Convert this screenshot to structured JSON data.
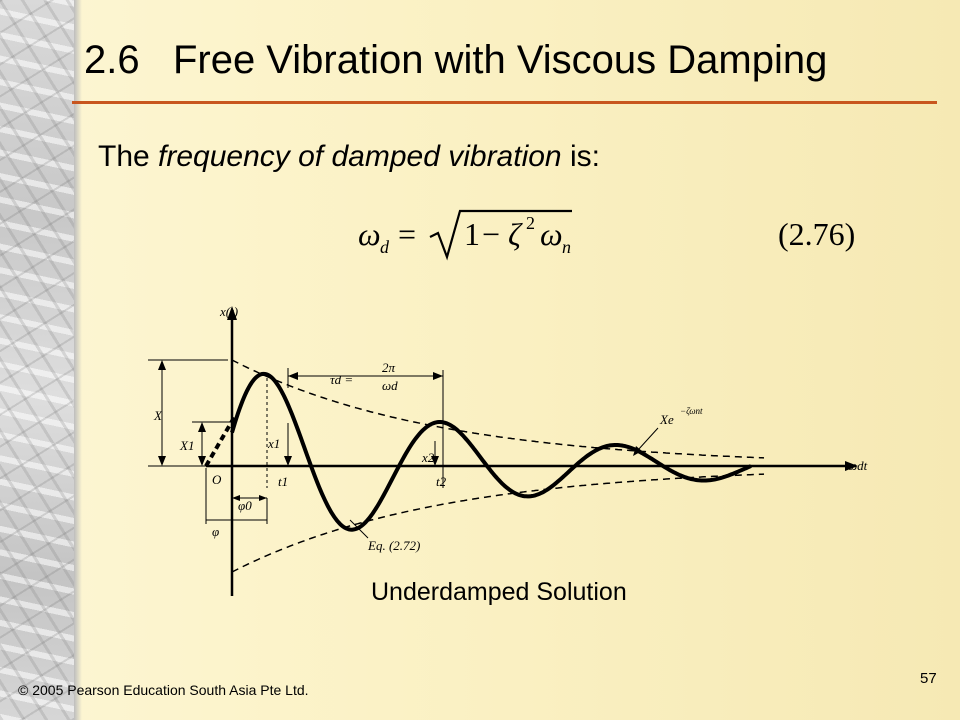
{
  "slide": {
    "title": "2.6   Free Vibration with Viscous Damping",
    "intro_prefix": "The ",
    "intro_emphasis": "frequency of damped vibration",
    "intro_suffix": " is:",
    "equation_number": "(2.76)",
    "caption": "Underdamped Solution",
    "copyright": "© 2005 Pearson Education South Asia Pte Ltd.",
    "page_number": "57",
    "accent_color": "#c8561e"
  },
  "figure": {
    "axis_y_label": "x(t)",
    "axis_x_label": "ωdt",
    "period_label": "τd =",
    "period_fraction_num": "2π",
    "period_fraction_den": "ωd",
    "envelope_label": "Xe",
    "envelope_exponent": "−ζωnt",
    "equation_ref": "Eq. (2.72)",
    "X_label": "X",
    "X1_label": "X1",
    "x1_label": "x1",
    "x2_label": "x2",
    "t1_label": "t1",
    "t2_label": "t2",
    "origin_label": "O",
    "phi0_label": "φ0",
    "phi_label": "φ"
  }
}
